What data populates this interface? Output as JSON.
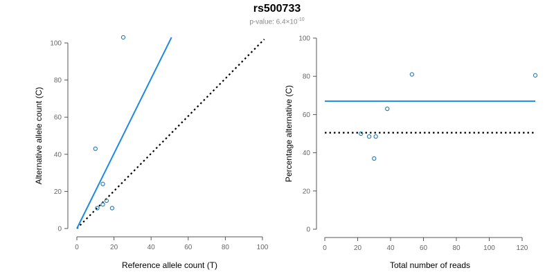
{
  "title": "rs500733",
  "subtitle": {
    "prefix": "p-value: 6.4×10",
    "exponent": "-10"
  },
  "colors": {
    "fit_line": "#1e88e5",
    "point_stroke": "#1f77b4",
    "reference_line": "#000000",
    "axis": "#555555"
  },
  "chart_data": [
    {
      "type": "scatter",
      "name": "left-panel",
      "xlabel": "Reference allele count (T)",
      "ylabel": "Alternative allele count (C)",
      "xlim": [
        0,
        100
      ],
      "ylim": [
        0,
        100
      ],
      "xticks": [
        0,
        20,
        40,
        60,
        80,
        100
      ],
      "yticks": [
        0,
        20,
        40,
        60,
        80,
        100
      ],
      "points": [
        {
          "x": 25,
          "y": 103
        },
        {
          "x": 10,
          "y": 43
        },
        {
          "x": 14,
          "y": 24
        },
        {
          "x": 14,
          "y": 13
        },
        {
          "x": 16,
          "y": 15
        },
        {
          "x": 19,
          "y": 11
        },
        {
          "x": 11,
          "y": 11
        }
      ],
      "fit_line": {
        "x1": 0,
        "y1": 0,
        "x2": 51,
        "y2": 103
      },
      "reference_line": {
        "x1": 0,
        "y1": 0,
        "x2": 101,
        "y2": 102
      }
    },
    {
      "type": "scatter",
      "name": "right-panel",
      "xlabel": "Total number of reads",
      "ylabel": "Percentage alternative (C)",
      "xlim": [
        0,
        128
      ],
      "ylim": [
        0,
        100
      ],
      "xticks": [
        0,
        20,
        40,
        60,
        80,
        100,
        120
      ],
      "yticks": [
        0,
        20,
        40,
        60,
        80,
        100
      ],
      "points": [
        {
          "x": 128,
          "y": 80.5
        },
        {
          "x": 53,
          "y": 81
        },
        {
          "x": 38,
          "y": 63
        },
        {
          "x": 22,
          "y": 50
        },
        {
          "x": 27,
          "y": 48.5
        },
        {
          "x": 31,
          "y": 48.5
        },
        {
          "x": 30,
          "y": 37
        }
      ],
      "fit_line": {
        "x1": 0,
        "y1": 67,
        "x2": 128,
        "y2": 67
      },
      "reference_line": {
        "x1": 0,
        "y1": 50.5,
        "x2": 128,
        "y2": 50.5
      }
    }
  ]
}
